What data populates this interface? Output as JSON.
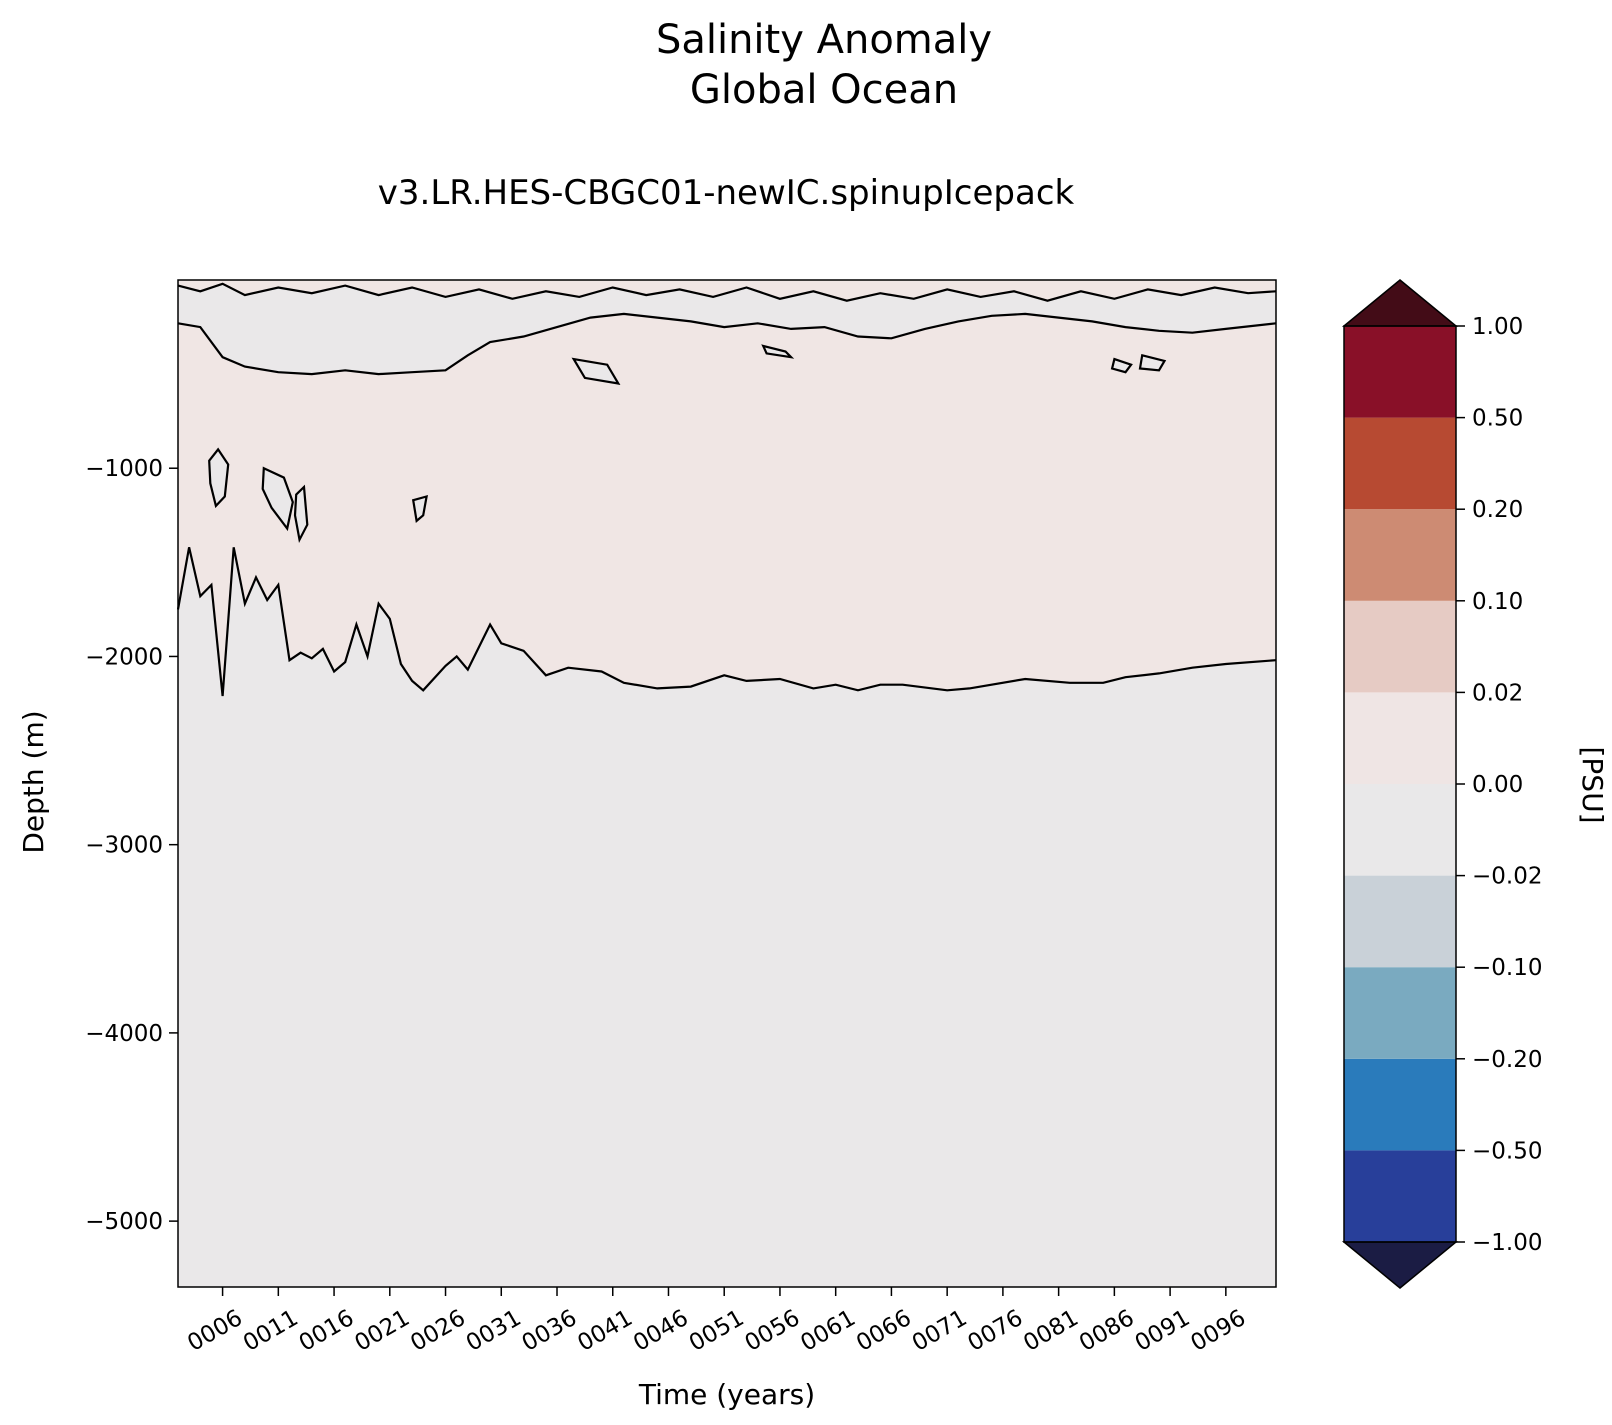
{
  "chart_data": {
    "type": "heatmap",
    "title": "Salinity Anomaly",
    "title_line2": "Global Ocean",
    "subtitle": "v3.LR.HES-CBGC01-newIC.spinupIcepack",
    "xlabel": "Time (years)",
    "ylabel": "Depth (m)",
    "colorbar_label": "[PSU]",
    "xlim": [
      2,
      100.5
    ],
    "ylim": [
      -5350,
      0
    ],
    "x_ticks": [
      6,
      11,
      16,
      21,
      26,
      31,
      36,
      41,
      46,
      51,
      56,
      61,
      66,
      71,
      76,
      81,
      86,
      91,
      96
    ],
    "x_tick_labels": [
      "0006",
      "0011",
      "0016",
      "0021",
      "0026",
      "0031",
      "0036",
      "0041",
      "0046",
      "0051",
      "0056",
      "0061",
      "0066",
      "0071",
      "0076",
      "0081",
      "0086",
      "0091",
      "0096"
    ],
    "y_ticks": [
      -1000,
      -2000,
      -3000,
      -4000,
      -5000
    ],
    "y_tick_labels": [
      "−1000",
      "−2000",
      "−3000",
      "−4000",
      "−5000"
    ],
    "colorbar": {
      "levels": [
        -1.0,
        -0.5,
        -0.2,
        -0.1,
        -0.02,
        0.0,
        0.02,
        0.1,
        0.2,
        0.5,
        1.0
      ],
      "level_labels": [
        "−1.00",
        "−0.50",
        "−0.20",
        "−0.10",
        "−0.02",
        "0.00",
        "0.02",
        "0.10",
        "0.20",
        "0.50",
        "1.00"
      ],
      "colors": [
        "#283f9a",
        "#2a7bbb",
        "#7aaac0",
        "#c9d1d8",
        "#e9e8e9",
        "#efe5e4",
        "#e6cbc4",
        "#cd8b73",
        "#b74a32",
        "#891028"
      ],
      "extend_low_color": "#1b1c44",
      "extend_high_color": "#430c17"
    },
    "regions": {
      "background_color": "#eae8e9",
      "positive_color": "#f0e6e4",
      "zero_contour_color": "#000000"
    },
    "zero_contour_main": [
      [
        2,
        -1750
      ],
      [
        3,
        -1420
      ],
      [
        4,
        -1680
      ],
      [
        5,
        -1620
      ],
      [
        6,
        -2210
      ],
      [
        7,
        -1420
      ],
      [
        8,
        -1720
      ],
      [
        9,
        -1580
      ],
      [
        10,
        -1700
      ],
      [
        11,
        -1620
      ],
      [
        12,
        -2020
      ],
      [
        13,
        -1980
      ],
      [
        14,
        -2010
      ],
      [
        15,
        -1960
      ],
      [
        16,
        -2080
      ],
      [
        17,
        -2030
      ],
      [
        18,
        -1830
      ],
      [
        19,
        -2000
      ],
      [
        20,
        -1720
      ],
      [
        21,
        -1800
      ],
      [
        22,
        -2040
      ],
      [
        23,
        -2130
      ],
      [
        24,
        -2180
      ],
      [
        26,
        -2050
      ],
      [
        27,
        -2000
      ],
      [
        28,
        -2070
      ],
      [
        30,
        -1830
      ],
      [
        31,
        -1930
      ],
      [
        33,
        -1970
      ],
      [
        35,
        -2100
      ],
      [
        37,
        -2060
      ],
      [
        40,
        -2080
      ],
      [
        42,
        -2140
      ],
      [
        45,
        -2170
      ],
      [
        48,
        -2160
      ],
      [
        51,
        -2100
      ],
      [
        53,
        -2130
      ],
      [
        56,
        -2120
      ],
      [
        59,
        -2170
      ],
      [
        61,
        -2150
      ],
      [
        63,
        -2180
      ],
      [
        65,
        -2150
      ],
      [
        67,
        -2150
      ],
      [
        71,
        -2180
      ],
      [
        73,
        -2170
      ],
      [
        78,
        -2120
      ],
      [
        82,
        -2140
      ],
      [
        85,
        -2140
      ],
      [
        87,
        -2110
      ],
      [
        90,
        -2090
      ],
      [
        93,
        -2060
      ],
      [
        96,
        -2040
      ],
      [
        100.5,
        -2020
      ]
    ],
    "zero_contour_upper": [
      [
        2,
        -230
      ],
      [
        4,
        -250
      ],
      [
        6,
        -410
      ],
      [
        8,
        -460
      ],
      [
        11,
        -490
      ],
      [
        14,
        -500
      ],
      [
        17,
        -480
      ],
      [
        20,
        -500
      ],
      [
        23,
        -490
      ],
      [
        26,
        -480
      ],
      [
        28,
        -400
      ],
      [
        30,
        -330
      ],
      [
        33,
        -300
      ],
      [
        36,
        -250
      ],
      [
        39,
        -200
      ],
      [
        42,
        -180
      ],
      [
        45,
        -200
      ],
      [
        48,
        -220
      ],
      [
        51,
        -250
      ],
      [
        54,
        -230
      ],
      [
        57,
        -260
      ],
      [
        60,
        -250
      ],
      [
        63,
        -300
      ],
      [
        66,
        -310
      ],
      [
        69,
        -260
      ],
      [
        72,
        -220
      ],
      [
        75,
        -190
      ],
      [
        78,
        -180
      ],
      [
        81,
        -200
      ],
      [
        84,
        -220
      ],
      [
        87,
        -250
      ],
      [
        90,
        -270
      ],
      [
        93,
        -280
      ],
      [
        96,
        -260
      ],
      [
        100.5,
        -230
      ]
    ],
    "zero_contour_surface": [
      [
        2,
        -30
      ],
      [
        4,
        -60
      ],
      [
        6,
        -20
      ],
      [
        8,
        -80
      ],
      [
        11,
        -40
      ],
      [
        14,
        -70
      ],
      [
        17,
        -30
      ],
      [
        20,
        -80
      ],
      [
        23,
        -40
      ],
      [
        26,
        -90
      ],
      [
        29,
        -50
      ],
      [
        32,
        -100
      ],
      [
        35,
        -60
      ],
      [
        38,
        -90
      ],
      [
        41,
        -40
      ],
      [
        44,
        -80
      ],
      [
        47,
        -50
      ],
      [
        50,
        -90
      ],
      [
        53,
        -40
      ],
      [
        56,
        -100
      ],
      [
        59,
        -60
      ],
      [
        62,
        -110
      ],
      [
        65,
        -70
      ],
      [
        68,
        -100
      ],
      [
        71,
        -50
      ],
      [
        74,
        -90
      ],
      [
        77,
        -60
      ],
      [
        80,
        -110
      ],
      [
        83,
        -60
      ],
      [
        86,
        -100
      ],
      [
        89,
        -50
      ],
      [
        92,
        -80
      ],
      [
        95,
        -40
      ],
      [
        98,
        -70
      ],
      [
        100.5,
        -60
      ]
    ],
    "closed_contours": [
      [
        [
          4.8,
          -960
        ],
        [
          5.6,
          -900
        ],
        [
          6.5,
          -980
        ],
        [
          6.2,
          -1150
        ],
        [
          5.4,
          -1200
        ],
        [
          4.9,
          -1080
        ]
      ],
      [
        [
          9.7,
          -1000
        ],
        [
          11.5,
          -1050
        ],
        [
          12.3,
          -1180
        ],
        [
          11.8,
          -1320
        ],
        [
          10.4,
          -1210
        ],
        [
          9.6,
          -1110
        ]
      ],
      [
        [
          12.6,
          -1140
        ],
        [
          13.3,
          -1100
        ],
        [
          13.6,
          -1300
        ],
        [
          12.9,
          -1380
        ],
        [
          12.5,
          -1250
        ]
      ],
      [
        [
          23.1,
          -1170
        ],
        [
          24.3,
          -1150
        ],
        [
          24.0,
          -1250
        ],
        [
          23.4,
          -1280
        ]
      ],
      [
        [
          37.5,
          -420
        ],
        [
          40.5,
          -450
        ],
        [
          41.5,
          -550
        ],
        [
          38.5,
          -520
        ]
      ],
      [
        [
          54.5,
          -350
        ],
        [
          56.5,
          -380
        ],
        [
          57.0,
          -410
        ],
        [
          54.8,
          -390
        ]
      ],
      [
        [
          86.0,
          -420
        ],
        [
          87.5,
          -450
        ],
        [
          87.0,
          -490
        ],
        [
          85.8,
          -470
        ]
      ],
      [
        [
          88.5,
          -400
        ],
        [
          90.5,
          -430
        ],
        [
          90.0,
          -480
        ],
        [
          88.3,
          -470
        ]
      ]
    ]
  }
}
